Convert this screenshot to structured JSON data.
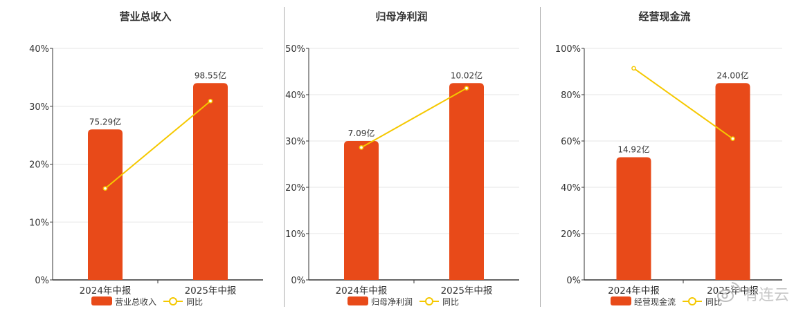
{
  "chart_data": [
    {
      "type": "bar",
      "title": "营业总收入",
      "categories": [
        "2024年中报",
        "2025年中报"
      ],
      "series": [
        {
          "name": "营业总收入",
          "values": [
            26,
            34
          ],
          "data_labels": [
            "75.29亿",
            "98.55亿"
          ]
        },
        {
          "name": "同比",
          "type": "line",
          "values": [
            15.8,
            30.9
          ]
        }
      ],
      "yticks": [
        "0%",
        "10%",
        "20%",
        "30%",
        "40%"
      ],
      "ylim": [
        0,
        40
      ],
      "grid": true,
      "legend": "bottom"
    },
    {
      "type": "bar",
      "title": "归母净利润",
      "categories": [
        "2024年中报",
        "2025年中报"
      ],
      "series": [
        {
          "name": "归母净利润",
          "values": [
            30,
            42.5
          ],
          "data_labels": [
            "7.09亿",
            "10.02亿"
          ]
        },
        {
          "name": "同比",
          "type": "line",
          "values": [
            28.6,
            41.4
          ]
        }
      ],
      "yticks": [
        "0%",
        "10%",
        "20%",
        "30%",
        "40%",
        "50%"
      ],
      "ylim": [
        0,
        50
      ],
      "grid": true,
      "legend": "bottom"
    },
    {
      "type": "bar",
      "title": "经营现金流",
      "categories": [
        "2024年中报",
        "2025年中报"
      ],
      "series": [
        {
          "name": "经营现金流",
          "values": [
            53,
            85
          ],
          "data_labels": [
            "14.92亿",
            "24.00亿"
          ]
        },
        {
          "name": "同比",
          "type": "line",
          "values": [
            91.4,
            61
          ]
        }
      ],
      "yticks": [
        "0%",
        "20%",
        "40%",
        "60%",
        "80%",
        "100%"
      ],
      "ylim": [
        0,
        100
      ],
      "grid": true,
      "legend": "bottom"
    }
  ],
  "colors": {
    "bar": "#e84a19",
    "line": "#f5c800",
    "grid": "#e6e6e6",
    "axis": "#333333",
    "text": "#333333"
  },
  "watermark": {
    "text": "有连云",
    "icon": "weibo-icon"
  }
}
